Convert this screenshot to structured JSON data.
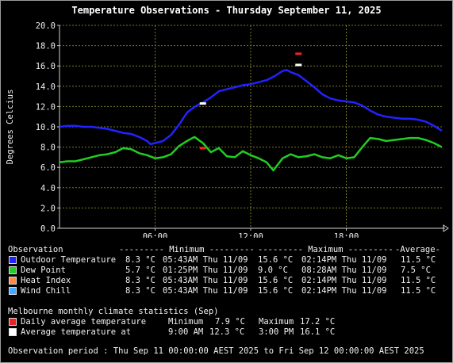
{
  "chart_data": {
    "type": "line",
    "title": "Temperature Observations - Thursday September 11, 2025",
    "ylabel": "Degrees Celcius",
    "xlabel": "",
    "ylim": [
      0,
      20
    ],
    "yticks": [
      "0.0",
      "2.0",
      "4.0",
      "6.0",
      "8.0",
      "10.0",
      "12.0",
      "14.0",
      "16.0",
      "18.0",
      "20.0"
    ],
    "xlim": [
      0,
      24
    ],
    "xticks": [
      {
        "x": 6,
        "label": "06:00"
      },
      {
        "x": 12,
        "label": "12:00"
      },
      {
        "x": 18,
        "label": "18:00"
      }
    ],
    "grid": true,
    "series": [
      {
        "name": "Outdoor Temperature",
        "color": "#2222ff",
        "x": [
          0,
          0.5,
          1,
          1.5,
          2,
          2.5,
          3,
          3.5,
          4,
          4.5,
          5,
          5.5,
          5.7,
          6,
          6.5,
          7,
          7.5,
          8,
          8.5,
          9,
          9.5,
          10,
          10.5,
          11,
          11.5,
          12,
          12.5,
          13,
          13.5,
          14,
          14.25,
          14.5,
          15,
          15.5,
          16,
          16.5,
          17,
          17.5,
          18,
          18.5,
          19,
          19.5,
          20,
          20.5,
          21,
          21.5,
          22,
          22.5,
          23,
          23.5,
          24
        ],
        "y": [
          10.0,
          10.1,
          10.1,
          10.0,
          10.0,
          9.9,
          9.8,
          9.6,
          9.4,
          9.3,
          9.0,
          8.6,
          8.3,
          8.4,
          8.6,
          9.2,
          10.2,
          11.4,
          12.0,
          12.4,
          12.9,
          13.5,
          13.7,
          13.9,
          14.1,
          14.2,
          14.4,
          14.6,
          15.0,
          15.5,
          15.6,
          15.4,
          15.1,
          14.5,
          13.9,
          13.2,
          12.8,
          12.6,
          12.5,
          12.4,
          12.1,
          11.6,
          11.2,
          11.0,
          10.9,
          10.8,
          10.8,
          10.7,
          10.5,
          10.1,
          9.6
        ]
      },
      {
        "name": "Dew Point",
        "color": "#22cc22",
        "x": [
          0,
          0.5,
          1,
          1.5,
          2,
          2.5,
          3,
          3.5,
          4,
          4.5,
          5,
          5.5,
          6,
          6.5,
          7,
          7.5,
          8,
          8.47,
          9,
          9.5,
          10,
          10.5,
          11,
          11.5,
          12,
          12.5,
          13,
          13.42,
          14,
          14.5,
          15,
          15.5,
          16,
          16.5,
          17,
          17.5,
          18,
          18.5,
          19,
          19.5,
          20,
          20.5,
          21,
          21.5,
          22,
          22.5,
          23,
          23.5,
          24
        ],
        "y": [
          6.5,
          6.6,
          6.6,
          6.8,
          7.0,
          7.2,
          7.3,
          7.5,
          7.9,
          7.8,
          7.4,
          7.2,
          6.9,
          7.0,
          7.3,
          8.1,
          8.6,
          9.0,
          8.4,
          7.5,
          7.9,
          7.1,
          7.0,
          7.6,
          7.2,
          6.9,
          6.5,
          5.7,
          6.9,
          7.3,
          7.0,
          7.1,
          7.3,
          7.0,
          6.9,
          7.2,
          6.9,
          7.0,
          8.0,
          8.9,
          8.8,
          8.6,
          8.7,
          8.8,
          8.9,
          8.9,
          8.7,
          8.4,
          8.0
        ]
      },
      {
        "name": "Heat Index",
        "color": "#ff8844",
        "x": [],
        "y": []
      },
      {
        "name": "Wind Chill",
        "color": "#44aaff",
        "x": [],
        "y": []
      }
    ],
    "markers": [
      {
        "name": "Daily average temperature minimum",
        "x": 9.0,
        "y": 7.9,
        "color": "#ee2222"
      },
      {
        "name": "Daily average temperature maximum",
        "x": 15.0,
        "y": 17.2,
        "color": "#ee2222"
      },
      {
        "name": "Average temperature at 9:00 AM",
        "x": 9.0,
        "y": 12.3,
        "color": "#ffffff"
      },
      {
        "name": "Average temperature at 3:00 PM",
        "x": 15.0,
        "y": 16.1,
        "color": "#ffffff"
      }
    ]
  },
  "legend": {
    "header": {
      "observation": "Observation",
      "minimum": "--------- Minimum ---------",
      "maximum": "--------- Maximum ---------",
      "average": "-Average-"
    },
    "rows": [
      {
        "label": "Outdoor Temperature",
        "color": "#2222ff",
        "min": "8.3 °C",
        "min_time": "05:43AM Thu 11/09",
        "max": "15.6 °C",
        "max_time": "02:14PM Thu 11/09",
        "avg": "11.5 °C"
      },
      {
        "label": "Dew Point",
        "color": "#22cc22",
        "min": "5.7 °C",
        "min_time": "01:25PM Thu 11/09",
        "max": "9.0 °C",
        "max_time": "08:28AM Thu 11/09",
        "avg": "7.5 °C"
      },
      {
        "label": "Heat Index",
        "color": "#ff8844",
        "min": "8.3 °C",
        "min_time": "05:43AM Thu 11/09",
        "max": "15.6 °C",
        "max_time": "02:14PM Thu 11/09",
        "avg": "11.5 °C"
      },
      {
        "label": "Wind Chill",
        "color": "#44aaff",
        "min": "8.3 °C",
        "min_time": "05:43AM Thu 11/09",
        "max": "15.6 °C",
        "max_time": "02:14PM Thu 11/09",
        "avg": "11.5 °C"
      }
    ]
  },
  "climate": {
    "heading": "Melbourne monthly climate statistics (Sep)",
    "daily": {
      "label": "Daily average temperature",
      "color": "#ee2222",
      "min_label": "Minimum",
      "min": "7.9 °C",
      "max_label": "Maximum",
      "max": "17.2 °C"
    },
    "avgat": {
      "label": "Average temperature at",
      "color": "#ffffff",
      "t1": "9:00 AM",
      "v1": "12.3 °C",
      "t2": "3:00 PM",
      "v2": "16.1 °C"
    }
  },
  "footer": "Observation period : Thu Sep 11 00:00:00 AEST 2025 to Fri Sep 12 00:00:00 AEST 2025"
}
